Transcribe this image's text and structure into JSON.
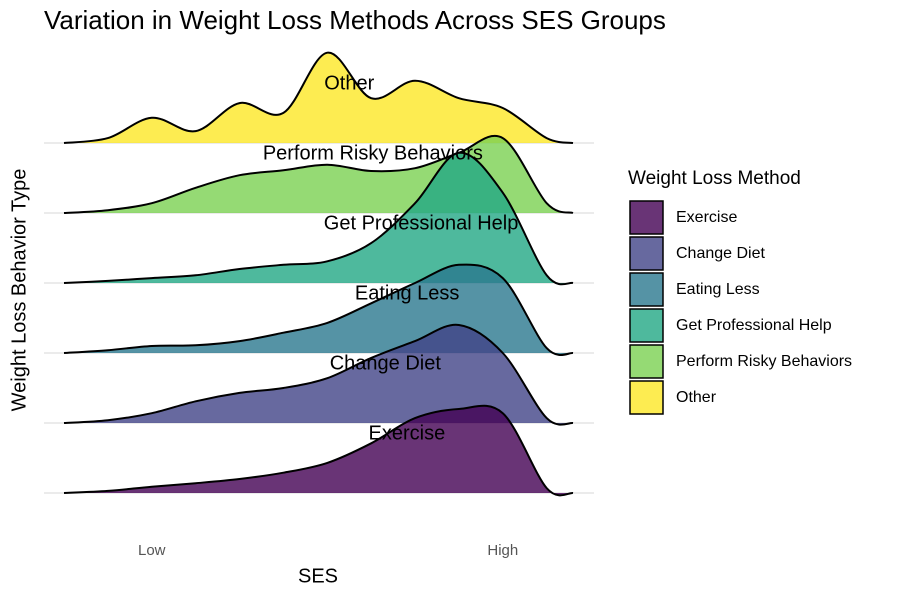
{
  "chart_data": {
    "type": "ridgeline",
    "title": "Variation in Weight Loss Methods Across SES Groups",
    "x_label": "SES",
    "y_label": "Weight Loss Behavior Type",
    "legend_title": "Weight Loss Method",
    "x": [
      0,
      0.5,
      1,
      1.5,
      2,
      2.5,
      3,
      3.5,
      4,
      4.5,
      5,
      5.5,
      5.8
    ],
    "xlim": [
      0,
      5.8
    ],
    "xticks": [
      {
        "value": 1,
        "label": "Low"
      },
      {
        "value": 5,
        "label": "High"
      }
    ],
    "ylim": [
      0,
      6.5
    ],
    "grid": true,
    "series": [
      {
        "name": "Exercise",
        "color": "#440154",
        "values": [
          0,
          0.03,
          0.09,
          0.14,
          0.2,
          0.29,
          0.43,
          0.71,
          1.07,
          1.2,
          1.14,
          0.07,
          0
        ]
      },
      {
        "name": "Change Diet",
        "color": "#414487",
        "values": [
          0,
          0.04,
          0.14,
          0.31,
          0.43,
          0.5,
          0.64,
          0.93,
          1.17,
          1.4,
          1.0,
          0.07,
          0
        ]
      },
      {
        "name": "Eating Less",
        "color": "#2A788E",
        "values": [
          0,
          0.04,
          0.1,
          0.11,
          0.17,
          0.29,
          0.43,
          0.71,
          1.0,
          1.26,
          1.07,
          0.07,
          0
        ]
      },
      {
        "name": "Get Professional Help",
        "color": "#22A884",
        "values": [
          0,
          0.03,
          0.07,
          0.11,
          0.2,
          0.26,
          0.31,
          0.57,
          1.14,
          1.86,
          1.29,
          0.11,
          0
        ]
      },
      {
        "name": "Perform Risky Behaviors",
        "color": "#7AD151",
        "values": [
          0,
          0.04,
          0.14,
          0.36,
          0.54,
          0.61,
          0.69,
          0.6,
          0.64,
          0.86,
          1.07,
          0.14,
          0
        ]
      },
      {
        "name": "Other",
        "color": "#FDE725",
        "values": [
          0,
          0.07,
          0.36,
          0.17,
          0.57,
          0.43,
          1.29,
          0.64,
          0.89,
          0.64,
          0.5,
          0.07,
          0
        ]
      }
    ]
  }
}
